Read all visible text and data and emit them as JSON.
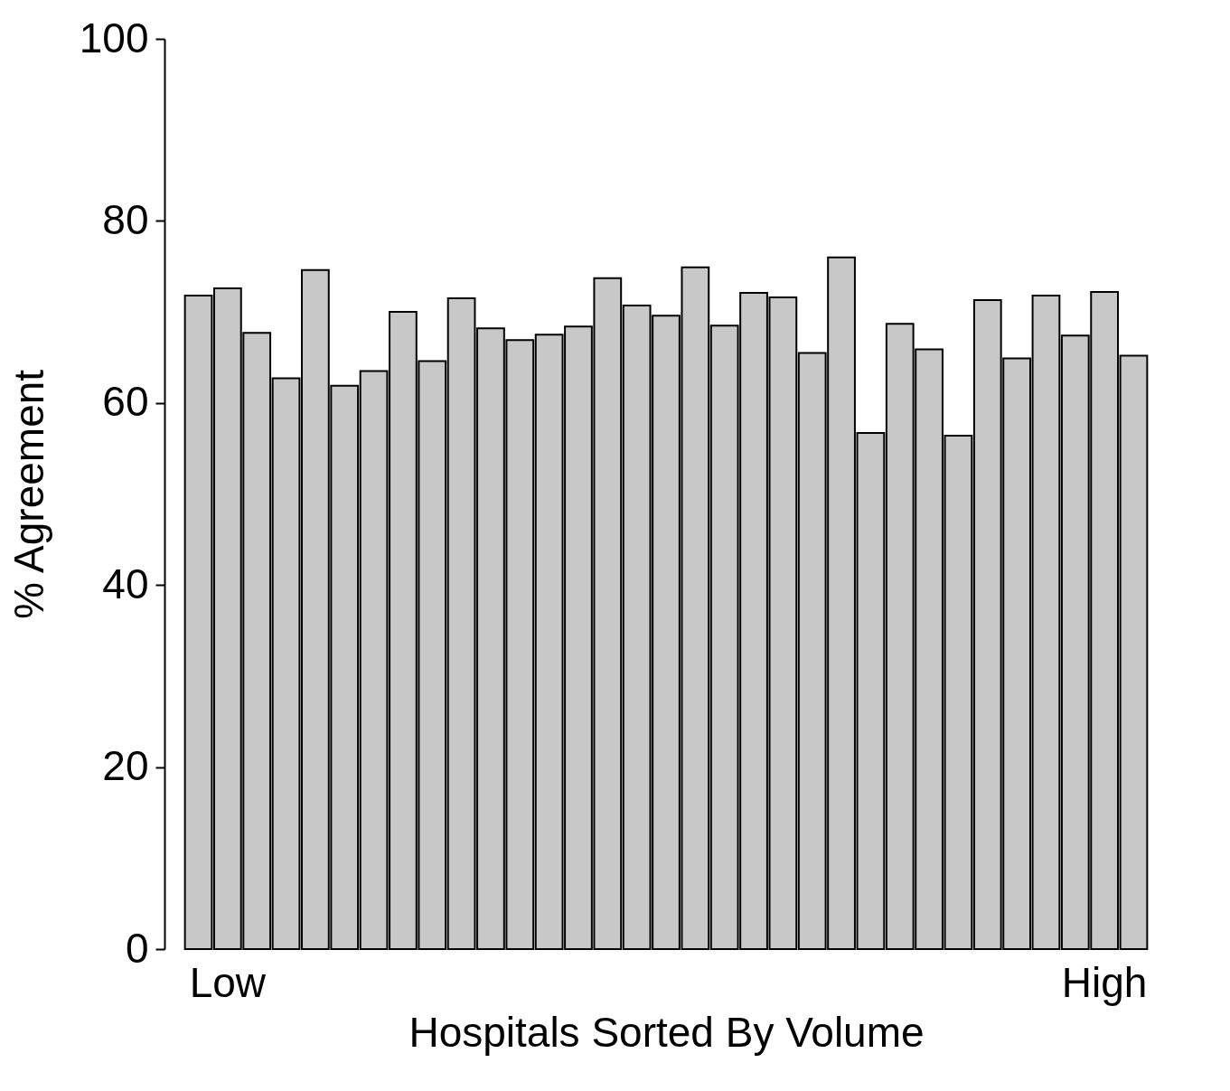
{
  "chart_data": {
    "type": "bar",
    "xlabel": "Hospitals Sorted By Volume",
    "ylabel": "% Agreement",
    "categories": [
      null,
      "Low",
      null,
      null,
      null,
      null,
      null,
      null,
      null,
      null,
      null,
      null,
      null,
      null,
      null,
      null,
      null,
      null,
      null,
      null,
      null,
      null,
      null,
      null,
      null,
      null,
      null,
      null,
      null,
      null,
      null,
      "High",
      null
    ],
    "values": [
      71.8,
      72.6,
      67.7,
      62.7,
      74.6,
      61.9,
      63.5,
      70.0,
      64.6,
      71.5,
      68.2,
      66.9,
      67.5,
      68.4,
      73.7,
      70.7,
      69.6,
      74.9,
      68.5,
      72.1,
      71.6,
      65.5,
      76.0,
      56.7,
      68.7,
      65.9,
      56.4,
      71.3,
      64.9,
      71.8,
      67.4,
      72.2,
      65.2
    ],
    "color": "#c8c8c8",
    "ylim": [
      0,
      100
    ],
    "yticks": [
      0,
      20,
      40,
      60,
      80,
      100
    ],
    "grid": false
  }
}
